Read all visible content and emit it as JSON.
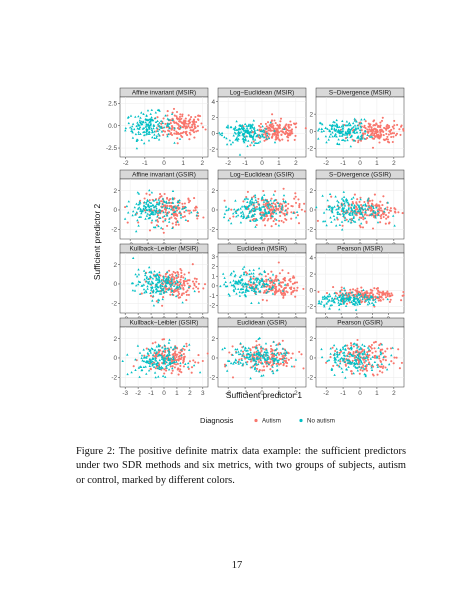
{
  "figure": {
    "xlabel": "Sufficient predictor 1",
    "ylabel": "Sufficient predictor 2",
    "legend": {
      "title": "Diagnosis",
      "items": [
        {
          "label": "Autism",
          "color": "#F8766D"
        },
        {
          "label": "No autism",
          "color": "#00BFC4"
        }
      ]
    },
    "colors": {
      "autism": "#F8766D",
      "no_autism": "#00BFC4",
      "strip_bg": "#D9D9D9",
      "grid": "#EBEBEB"
    }
  },
  "caption": "Figure 2: The positive definite matrix data example: the sufficient predictors under two SDR methods and six metrics, with two groups of subjects, autism or control, marked by different colors.",
  "page_number": "17",
  "chart_data": [
    {
      "type": "scatter",
      "title": "Affine invariant (MSIR)",
      "xlim": [
        -2.3,
        2.3
      ],
      "ylim": [
        -3.5,
        3.2
      ],
      "xticks": [
        "-2",
        "-1",
        "0",
        "1",
        "2"
      ],
      "xtick_values": [
        -2,
        -1,
        0,
        1,
        2
      ],
      "yticks": [
        "2.5",
        "0.0",
        "-2.5"
      ],
      "ytick_values": [
        2.5,
        0,
        -2.5
      ],
      "autism_center": [
        0.9,
        0.0
      ],
      "no_autism_center": [
        -0.8,
        0.0
      ],
      "spread": [
        0.6,
        1.0
      ],
      "n_per_group": 160
    },
    {
      "type": "scatter",
      "title": "Log−Euclidean (MSIR)",
      "xlim": [
        -2.6,
        2.6
      ],
      "ylim": [
        -3.0,
        4.6
      ],
      "xticks": [
        "-2",
        "-1",
        "0",
        "1",
        "2"
      ],
      "xtick_values": [
        -2,
        -1,
        0,
        1,
        2
      ],
      "yticks": [
        "4",
        "2",
        "0",
        "-2"
      ],
      "ytick_values": [
        4,
        2,
        0,
        -2
      ],
      "autism_center": [
        0.9,
        0.2
      ],
      "no_autism_center": [
        -0.9,
        0.0
      ],
      "spread": [
        0.7,
        0.9
      ],
      "n_per_group": 160
    },
    {
      "type": "scatter",
      "title": "S−Divergence (MSIR)",
      "xlim": [
        -2.6,
        2.6
      ],
      "ylim": [
        -3.0,
        4.0
      ],
      "xticks": [
        "-2",
        "-1",
        "0",
        "1",
        "2"
      ],
      "xtick_values": [
        -2,
        -1,
        0,
        1,
        2
      ],
      "yticks": [
        "2",
        "0",
        "-2"
      ],
      "ytick_values": [
        2,
        0,
        -2
      ],
      "autism_center": [
        0.9,
        0.0
      ],
      "no_autism_center": [
        -0.9,
        0.0
      ],
      "spread": [
        0.7,
        0.9
      ],
      "n_per_group": 160
    },
    {
      "type": "scatter",
      "title": "Affine invariant (GSIR)",
      "xlim": [
        -2.6,
        2.6
      ],
      "ylim": [
        -3.0,
        3.2
      ],
      "xticks": [
        "-2",
        "-1",
        "0",
        "1",
        "2"
      ],
      "xtick_values": [
        -2,
        -1,
        0,
        1,
        2
      ],
      "yticks": [
        "2",
        "0",
        "-2"
      ],
      "ytick_values": [
        2,
        0,
        -2
      ],
      "autism_center": [
        0.4,
        0.0
      ],
      "no_autism_center": [
        -0.5,
        0.0
      ],
      "spread": [
        0.9,
        1.0
      ],
      "n_per_group": 160
    },
    {
      "type": "scatter",
      "title": "Log−Euclidean (GSIR)",
      "xlim": [
        -2.6,
        2.6
      ],
      "ylim": [
        -3.0,
        3.2
      ],
      "xticks": [
        "-2",
        "-1",
        "0",
        "1",
        "2"
      ],
      "xtick_values": [
        -2,
        -1,
        0,
        1,
        2
      ],
      "yticks": [
        "2",
        "0",
        "-2"
      ],
      "ytick_values": [
        2,
        0,
        -2
      ],
      "autism_center": [
        0.5,
        0.0
      ],
      "no_autism_center": [
        -0.5,
        0.0
      ],
      "spread": [
        0.9,
        1.0
      ],
      "n_per_group": 160
    },
    {
      "type": "scatter",
      "title": "S−Divergence (GSIR)",
      "xlim": [
        -2.6,
        2.6
      ],
      "ylim": [
        -3.0,
        3.2
      ],
      "xticks": [
        "-2",
        "-1",
        "0",
        "1",
        "2"
      ],
      "xtick_values": [
        -2,
        -1,
        0,
        1,
        2
      ],
      "yticks": [
        "2",
        "0",
        "-2"
      ],
      "ytick_values": [
        2,
        0,
        -2
      ],
      "autism_center": [
        0.5,
        0.0
      ],
      "no_autism_center": [
        -0.5,
        0.0
      ],
      "spread": [
        0.9,
        1.0
      ],
      "n_per_group": 160
    },
    {
      "type": "scatter",
      "title": "Kullback−Leibler (MSIR)",
      "xlim": [
        -3.4,
        3.4
      ],
      "ylim": [
        -3.0,
        3.2
      ],
      "xticks": [
        "-3",
        "-2",
        "-1",
        "0",
        "1",
        "2",
        "3"
      ],
      "xtick_values": [
        -3,
        -2,
        -1,
        0,
        1,
        2,
        3
      ],
      "yticks": [
        "2",
        "0",
        "-2"
      ],
      "ytick_values": [
        2,
        0,
        -2
      ],
      "autism_center": [
        0.8,
        0.0
      ],
      "no_autism_center": [
        -0.6,
        0.0
      ],
      "spread": [
        0.9,
        1.0
      ],
      "n_per_group": 160
    },
    {
      "type": "scatter",
      "title": "Euclidean (MSIR)",
      "xlim": [
        -2.6,
        2.6
      ],
      "ylim": [
        -2.8,
        3.4
      ],
      "xticks": [
        "-2",
        "-1",
        "0",
        "1",
        "2"
      ],
      "xtick_values": [
        -2,
        -1,
        0,
        1,
        2
      ],
      "yticks": [
        "3",
        "2",
        "1",
        "0",
        "-1",
        "-2"
      ],
      "ytick_values": [
        3,
        2,
        1,
        0,
        -1,
        -2
      ],
      "autism_center": [
        0.7,
        0.0
      ],
      "no_autism_center": [
        -0.7,
        0.3
      ],
      "spread": [
        0.8,
        0.9
      ],
      "n_per_group": 160
    },
    {
      "type": "scatter",
      "title": "Pearson (MSIR)",
      "xlim": [
        -2.6,
        3.0
      ],
      "ylim": [
        -2.8,
        4.6
      ],
      "xticks": [
        "-2",
        "-1",
        "0",
        "1",
        "2"
      ],
      "xtick_values": [
        -2,
        -1,
        0,
        1,
        2
      ],
      "yticks": [
        "4",
        "2",
        "0",
        "-2"
      ],
      "ytick_values": [
        4,
        2,
        0,
        -2
      ],
      "autism_center": [
        0.5,
        -0.6
      ],
      "no_autism_center": [
        -0.4,
        -1.2
      ],
      "spread": [
        1.0,
        0.6
      ],
      "n_per_group": 160
    },
    {
      "type": "scatter",
      "title": "Kullback−Leibler (GSIR)",
      "xlim": [
        -3.4,
        3.4
      ],
      "ylim": [
        -3.0,
        3.2
      ],
      "xticks": [
        "-3",
        "-2",
        "-1",
        "0",
        "1",
        "2",
        "3"
      ],
      "xtick_values": [
        -3,
        -2,
        -1,
        0,
        1,
        2,
        3
      ],
      "yticks": [
        "2",
        "0",
        "-2"
      ],
      "ytick_values": [
        2,
        0,
        -2
      ],
      "autism_center": [
        0.4,
        0.0
      ],
      "no_autism_center": [
        -0.4,
        -0.2
      ],
      "spread": [
        1.0,
        1.0
      ],
      "n_per_group": 160
    },
    {
      "type": "scatter",
      "title": "Euclidean (GSIR)",
      "xlim": [
        -2.6,
        2.6
      ],
      "ylim": [
        -3.0,
        3.2
      ],
      "xticks": [
        "-2",
        "-1",
        "0",
        "1",
        "2"
      ],
      "xtick_values": [
        -2,
        -1,
        0,
        1,
        2
      ],
      "yticks": [
        "2",
        "0",
        "-2"
      ],
      "ytick_values": [
        2,
        0,
        -2
      ],
      "autism_center": [
        0.3,
        0.0
      ],
      "no_autism_center": [
        -0.3,
        0.0
      ],
      "spread": [
        0.9,
        1.0
      ],
      "n_per_group": 160
    },
    {
      "type": "scatter",
      "title": "Pearson (GSIR)",
      "xlim": [
        -2.6,
        2.6
      ],
      "ylim": [
        -3.0,
        3.2
      ],
      "xticks": [
        "-2",
        "-1",
        "0",
        "1",
        "2"
      ],
      "xtick_values": [
        -2,
        -1,
        0,
        1,
        2
      ],
      "yticks": [
        "2",
        "0",
        "-2"
      ],
      "ytick_values": [
        2,
        0,
        -2
      ],
      "autism_center": [
        0.3,
        0.0
      ],
      "no_autism_center": [
        -0.3,
        0.0
      ],
      "spread": [
        0.9,
        1.0
      ],
      "n_per_group": 160
    }
  ]
}
